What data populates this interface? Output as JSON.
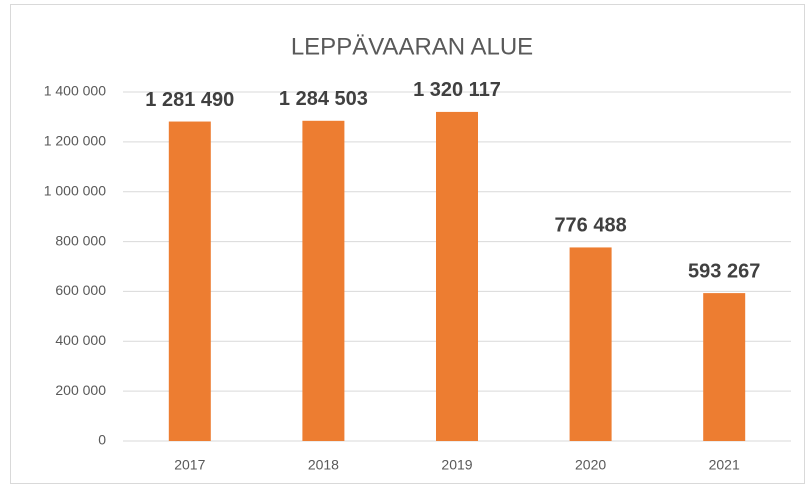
{
  "chart_data": {
    "type": "bar",
    "title": "LEPPÄVAARAN ALUE",
    "categories": [
      "2017",
      "2018",
      "2019",
      "2020",
      "2021"
    ],
    "values": [
      1281490,
      1284503,
      1320117,
      776488,
      593267
    ],
    "value_labels": [
      "1 281 490",
      "1 284 503",
      "1 320 117",
      "776 488",
      "593 267"
    ],
    "color": "#ed7d31",
    "ylim": [
      0,
      1400000
    ],
    "yticks": [
      0,
      {
        "value": 200000,
        "label": "200 000"
      },
      {
        "value": 400000,
        "label": "400 000"
      },
      {
        "value": 600000,
        "label": "600 000"
      },
      {
        "value": 800000,
        "label": "800 000"
      },
      {
        "value": 1000000,
        "label": "1 000 000"
      },
      {
        "value": 1200000,
        "label": "1 200 000"
      },
      {
        "value": 1400000,
        "label": "1 400 000"
      }
    ],
    "grid": true
  }
}
